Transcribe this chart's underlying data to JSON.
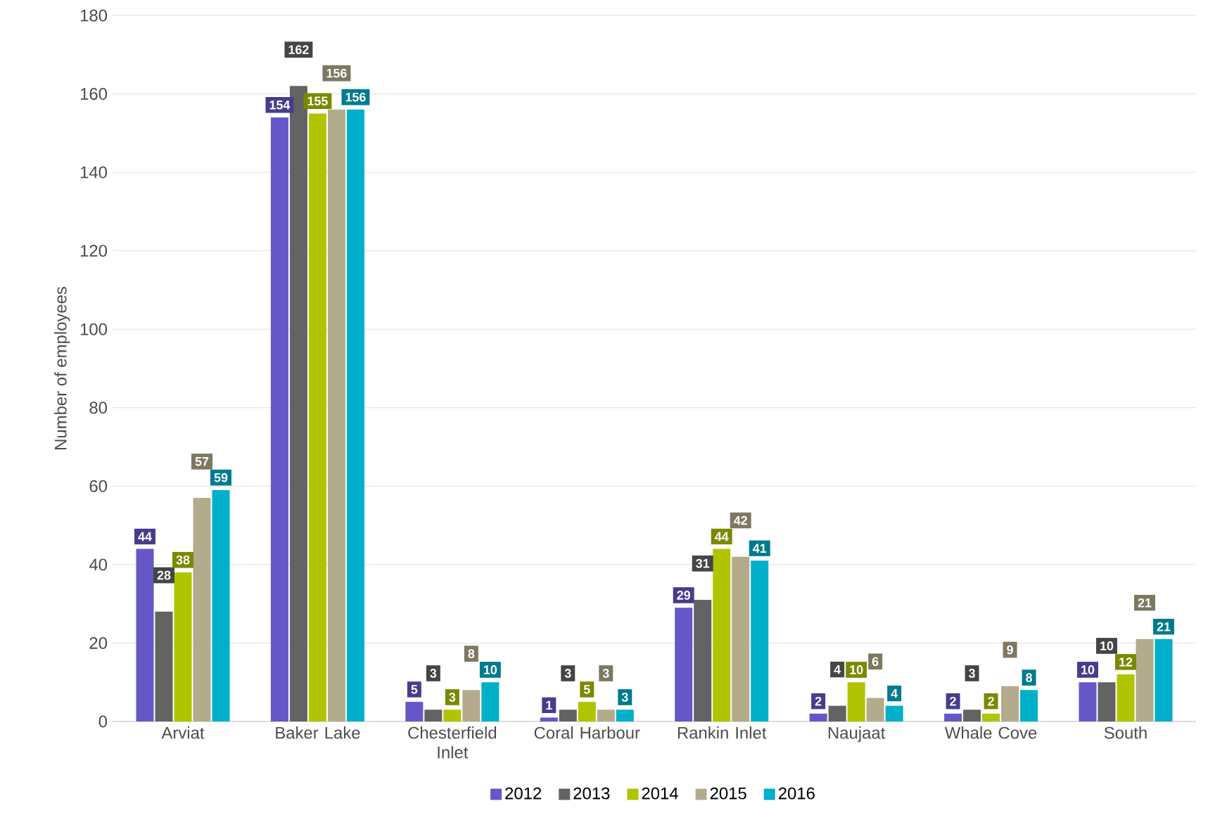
{
  "chart_data": {
    "type": "bar",
    "ylabel": "Number of employees",
    "categories": [
      "Arviat",
      "Baker Lake",
      "Chesterfield Inlet",
      "Coral Harbour",
      "Rankin Inlet",
      "Naujaat",
      "Whale Cove",
      "South"
    ],
    "series": [
      {
        "name": "2012",
        "color": "#6557c8",
        "values": [
          44,
          154,
          5,
          1,
          29,
          2,
          2,
          10
        ]
      },
      {
        "name": "2013",
        "color": "#636363",
        "values": [
          28,
          162,
          3,
          3,
          31,
          4,
          3,
          10
        ]
      },
      {
        "name": "2014",
        "color": "#b0c400",
        "values": [
          38,
          155,
          3,
          5,
          44,
          10,
          2,
          12
        ]
      },
      {
        "name": "2015",
        "color": "#b3ab8c",
        "values": [
          57,
          156,
          8,
          3,
          42,
          6,
          9,
          21
        ]
      },
      {
        "name": "2016",
        "color": "#00afc9",
        "values": [
          59,
          156,
          10,
          3,
          41,
          4,
          8,
          21
        ]
      }
    ],
    "ylim": [
      0,
      180
    ],
    "yticks": [
      0,
      20,
      40,
      60,
      80,
      100,
      120,
      140,
      160,
      180
    ],
    "grid": "y",
    "legend": "bottom",
    "data_labels": true
  }
}
